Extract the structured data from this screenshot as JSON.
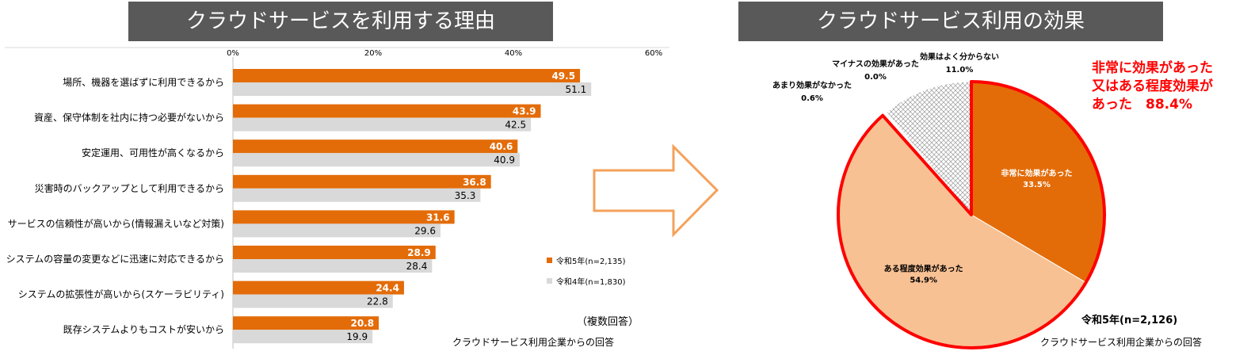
{
  "left_title": "クラウドサービスを利用する理由",
  "right_title": "クラウドサービス利用の効果",
  "chart_data": [
    {
      "type": "bar",
      "orientation": "horizontal",
      "categories": [
        "場所、機器を選ばずに利用できるから",
        "資産、保守体制を社内に持つ必要がないから",
        "安定運用、可用性が高くなるから",
        "災害時のバックアップとして利用できるから",
        "サービスの信頼性が高いから(情報漏えいなど対策)",
        "システムの容量の変更などに迅速に対応できるから",
        "システムの拡張性が高いから(スケーラビリティ)",
        "既存システムよりもコストが安いから"
      ],
      "series": [
        {
          "name": "令和5年(n=2,135)",
          "color": "#e36c09",
          "values": [
            49.5,
            43.9,
            40.6,
            36.8,
            31.6,
            28.9,
            24.4,
            20.8
          ]
        },
        {
          "name": "令和4年(n=1,830)",
          "color": "#d9d9d9",
          "values": [
            51.1,
            42.5,
            40.9,
            35.3,
            29.6,
            28.4,
            22.8,
            19.9
          ]
        }
      ],
      "xlim": [
        0,
        60
      ],
      "ticks": [
        "0%",
        "20%",
        "40%",
        "60%"
      ],
      "legend_position": "bottom-right",
      "note1": "（複数回答）",
      "note2": "クラウドサービス利用企業からの回答"
    },
    {
      "type": "pie",
      "slices": [
        {
          "label": "非常に効果があった",
          "value": 33.5,
          "pct": "33.5%",
          "color": "#e36c09"
        },
        {
          "label": "ある程度効果があった",
          "value": 54.9,
          "pct": "54.9%",
          "color": "#f8c193"
        },
        {
          "label": "あまり効果がなかった",
          "value": 0.6,
          "pct": "0.6%",
          "color": "#ffffff"
        },
        {
          "label": "マイナスの効果があった",
          "value": 0.0,
          "pct": "0.0%",
          "color": "#ffffff"
        },
        {
          "label": "効果はよく分からない",
          "value": 11.0,
          "pct": "11.0%",
          "color": "#e0e0e0"
        }
      ],
      "highlight_line1": "非常に効果があった",
      "highlight_line2": "又はある程度効果が",
      "highlight_line3": "あった　88.4%",
      "highlight_color": "#ff0000",
      "sample": "令和5年(n=2,126)",
      "note": "クラウドサービス利用企業からの回答"
    }
  ]
}
